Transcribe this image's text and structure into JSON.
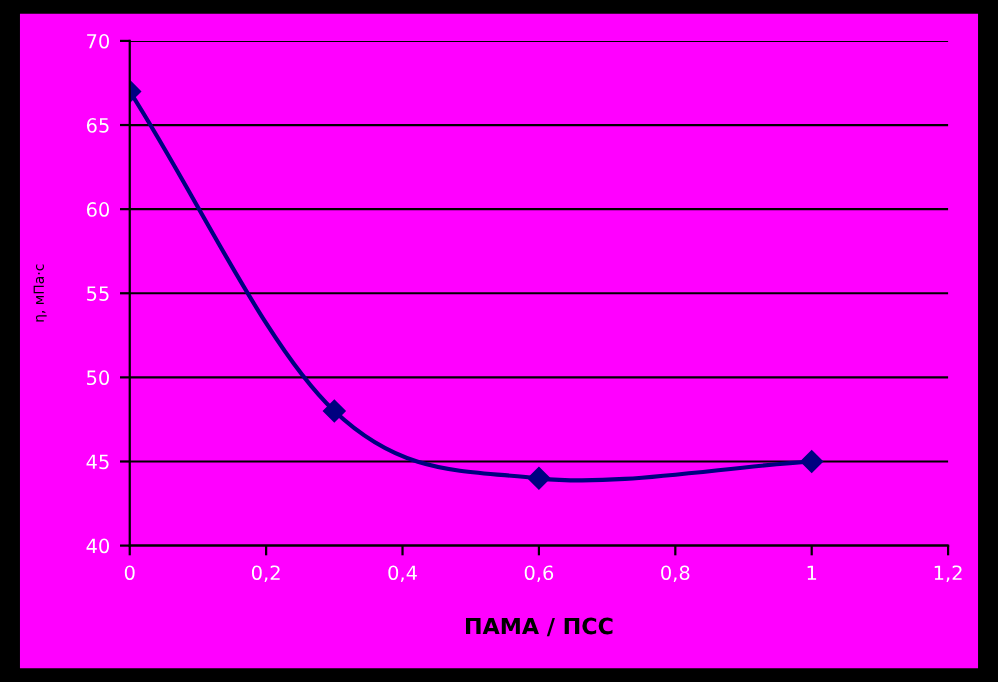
{
  "chart_data": {
    "type": "line",
    "xlabel": "ПАМА / ПСС",
    "ylabel": "η, мПа·с",
    "x": [
      0,
      0.3,
      0.6,
      1
    ],
    "series": [
      {
        "color": "#000080",
        "values": [
          67,
          48,
          44,
          45
        ]
      }
    ],
    "xlim": [
      0,
      1.2
    ],
    "xticks": [
      0,
      {
        "value": 0.2,
        "label": "0,2"
      },
      {
        "value": 0.4,
        "label": "0,4"
      },
      {
        "value": 0.6,
        "label": "0,6"
      },
      {
        "value": 0.8,
        "label": "0,8"
      },
      1,
      {
        "value": 1.2,
        "label": "1,2"
      }
    ],
    "ylim": [
      40,
      70
    ],
    "yticks": [
      40,
      45,
      50,
      55,
      60,
      65,
      70
    ],
    "grid": "y",
    "marker": "diamond",
    "line_style": "solid",
    "legend": false
  }
}
